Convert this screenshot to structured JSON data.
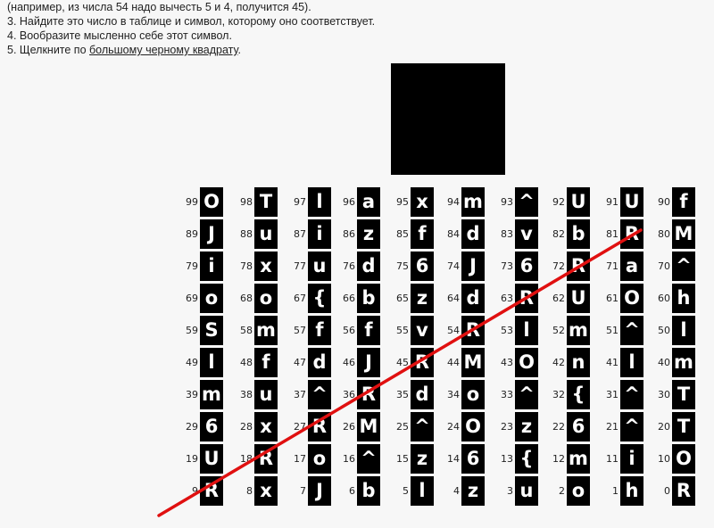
{
  "instructions": {
    "line1": "(например, из числа 54 надо вычесть 5 и 4, получится 45).",
    "line2": "3. Найдите это число в таблице и символ, которому оно соответствует.",
    "line3": "4. Вообразите мысленно себе этот символ.",
    "line4_prefix": "5. Щелкните по ",
    "line4_link": "большому черному квадрату",
    "line4_suffix": "."
  },
  "colors": {
    "square": "#000000",
    "annotation_line": "#e01010"
  },
  "grid": [
    [
      {
        "n": "99",
        "s": "O"
      },
      {
        "n": "98",
        "s": "T"
      },
      {
        "n": "97",
        "s": "l"
      },
      {
        "n": "96",
        "s": "a"
      },
      {
        "n": "95",
        "s": "x"
      },
      {
        "n": "94",
        "s": "m"
      },
      {
        "n": "93",
        "s": "^"
      },
      {
        "n": "92",
        "s": "U"
      },
      {
        "n": "91",
        "s": "U"
      },
      {
        "n": "90",
        "s": "f"
      }
    ],
    [
      {
        "n": "89",
        "s": "J"
      },
      {
        "n": "88",
        "s": "u"
      },
      {
        "n": "87",
        "s": "i"
      },
      {
        "n": "86",
        "s": "z"
      },
      {
        "n": "85",
        "s": "f"
      },
      {
        "n": "84",
        "s": "d"
      },
      {
        "n": "83",
        "s": "v"
      },
      {
        "n": "82",
        "s": "b"
      },
      {
        "n": "81",
        "s": "R"
      },
      {
        "n": "80",
        "s": "M"
      }
    ],
    [
      {
        "n": "79",
        "s": "i"
      },
      {
        "n": "78",
        "s": "x"
      },
      {
        "n": "77",
        "s": "u"
      },
      {
        "n": "76",
        "s": "d"
      },
      {
        "n": "75",
        "s": "6"
      },
      {
        "n": "74",
        "s": "J"
      },
      {
        "n": "73",
        "s": "6"
      },
      {
        "n": "72",
        "s": "R"
      },
      {
        "n": "71",
        "s": "a"
      },
      {
        "n": "70",
        "s": "^"
      }
    ],
    [
      {
        "n": "69",
        "s": "o"
      },
      {
        "n": "68",
        "s": "o"
      },
      {
        "n": "67",
        "s": "{"
      },
      {
        "n": "66",
        "s": "b"
      },
      {
        "n": "65",
        "s": "z"
      },
      {
        "n": "64",
        "s": "d"
      },
      {
        "n": "63",
        "s": "R"
      },
      {
        "n": "62",
        "s": "U"
      },
      {
        "n": "61",
        "s": "O"
      },
      {
        "n": "60",
        "s": "h"
      }
    ],
    [
      {
        "n": "59",
        "s": "S"
      },
      {
        "n": "58",
        "s": "m"
      },
      {
        "n": "57",
        "s": "f"
      },
      {
        "n": "56",
        "s": "f"
      },
      {
        "n": "55",
        "s": "v"
      },
      {
        "n": "54",
        "s": "R"
      },
      {
        "n": "53",
        "s": "l"
      },
      {
        "n": "52",
        "s": "m"
      },
      {
        "n": "51",
        "s": "^"
      },
      {
        "n": "50",
        "s": "l"
      }
    ],
    [
      {
        "n": "49",
        "s": "l"
      },
      {
        "n": "48",
        "s": "f"
      },
      {
        "n": "47",
        "s": "d"
      },
      {
        "n": "46",
        "s": "J"
      },
      {
        "n": "45",
        "s": "R"
      },
      {
        "n": "44",
        "s": "M"
      },
      {
        "n": "43",
        "s": "O"
      },
      {
        "n": "42",
        "s": "n"
      },
      {
        "n": "41",
        "s": "l"
      },
      {
        "n": "40",
        "s": "m"
      }
    ],
    [
      {
        "n": "39",
        "s": "m"
      },
      {
        "n": "38",
        "s": "u"
      },
      {
        "n": "37",
        "s": "^"
      },
      {
        "n": "36",
        "s": "R"
      },
      {
        "n": "35",
        "s": "d"
      },
      {
        "n": "34",
        "s": "o"
      },
      {
        "n": "33",
        "s": "^"
      },
      {
        "n": "32",
        "s": "{"
      },
      {
        "n": "31",
        "s": "^"
      },
      {
        "n": "30",
        "s": "T"
      }
    ],
    [
      {
        "n": "29",
        "s": "6"
      },
      {
        "n": "28",
        "s": "x"
      },
      {
        "n": "27",
        "s": "R"
      },
      {
        "n": "26",
        "s": "M"
      },
      {
        "n": "25",
        "s": "^"
      },
      {
        "n": "24",
        "s": "O"
      },
      {
        "n": "23",
        "s": "z"
      },
      {
        "n": "22",
        "s": "6"
      },
      {
        "n": "21",
        "s": "^"
      },
      {
        "n": "20",
        "s": "T"
      }
    ],
    [
      {
        "n": "19",
        "s": "U"
      },
      {
        "n": "18",
        "s": "R"
      },
      {
        "n": "17",
        "s": "o"
      },
      {
        "n": "16",
        "s": "^"
      },
      {
        "n": "15",
        "s": "z"
      },
      {
        "n": "14",
        "s": "6"
      },
      {
        "n": "13",
        "s": "{"
      },
      {
        "n": "12",
        "s": "m"
      },
      {
        "n": "11",
        "s": "i"
      },
      {
        "n": "10",
        "s": "O"
      }
    ],
    [
      {
        "n": "9",
        "s": "R"
      },
      {
        "n": "8",
        "s": "x"
      },
      {
        "n": "7",
        "s": "J"
      },
      {
        "n": "6",
        "s": "b"
      },
      {
        "n": "5",
        "s": "l"
      },
      {
        "n": "4",
        "s": "z"
      },
      {
        "n": "3",
        "s": "u"
      },
      {
        "n": "2",
        "s": "o"
      },
      {
        "n": "1",
        "s": "h"
      },
      {
        "n": "0",
        "s": "R"
      }
    ]
  ]
}
